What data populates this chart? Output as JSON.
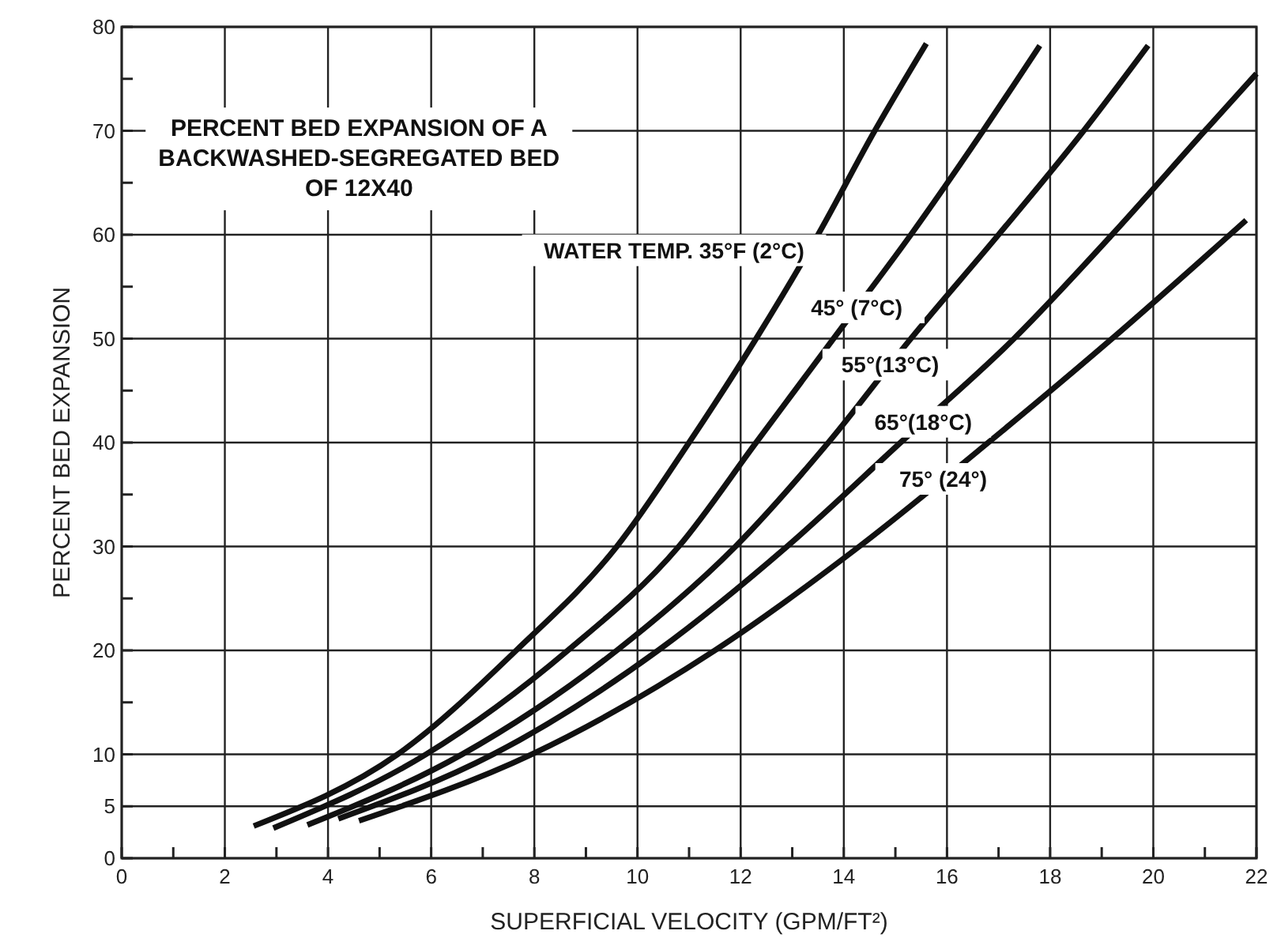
{
  "chart_data": {
    "type": "line",
    "title": "PERCENT BED EXPANSION OF A\nBACKWASHED-SEGREGATED BED\nOF 12X40",
    "xlabel": "SUPERFICIAL VELOCITY (GPM/FT²)",
    "ylabel": "PERCENT BED EXPANSION",
    "xlim": [
      0,
      22
    ],
    "ylim": [
      0,
      80
    ],
    "xticks": [
      0,
      {
        "value": 1,
        "label": null
      },
      2,
      {
        "value": 3,
        "label": null
      },
      4,
      {
        "value": 5,
        "label": null
      },
      6,
      {
        "value": 7,
        "label": null
      },
      8,
      {
        "value": 9,
        "label": null
      },
      10,
      {
        "value": 11,
        "label": null
      },
      12,
      {
        "value": 13,
        "label": null
      },
      14,
      {
        "value": 15,
        "label": null
      },
      16,
      {
        "value": 17,
        "label": null
      },
      18,
      {
        "value": 19,
        "label": null
      },
      20,
      {
        "value": 21,
        "label": null
      },
      22
    ],
    "yticks": [
      0,
      5,
      10,
      {
        "value": 15,
        "label": null
      },
      20,
      {
        "value": 25,
        "label": null
      },
      30,
      {
        "value": 35,
        "label": null
      },
      40,
      {
        "value": 45,
        "label": null
      },
      50,
      {
        "value": 55,
        "label": null
      },
      60,
      {
        "value": 65,
        "label": null
      },
      70,
      {
        "value": 75,
        "label": null
      },
      80
    ],
    "grid": true,
    "marker": "none",
    "line_style": "solid",
    "series": [
      {
        "name": "WATER TEMP. 35°F (2°C)",
        "color": "#111111",
        "x": [
          2.56,
          5.35,
          7.65,
          9.6,
          11.0,
          12.3,
          13.5,
          14.6,
          15.6
        ],
        "values": [
          3.1,
          10,
          20,
          30,
          40,
          50,
          60,
          70,
          78.4
        ]
      },
      {
        "name": "45° (7°C)",
        "color": "#111111",
        "x": [
          2.94,
          5.9,
          8.65,
          10.8,
          12.3,
          13.8,
          15.3,
          16.7,
          17.8
        ],
        "values": [
          2.9,
          10,
          20,
          30,
          40,
          50,
          60,
          70,
          78.2
        ]
      },
      {
        "name": "55°(13°C)",
        "color": "#111111",
        "x": [
          3.6,
          6.6,
          9.6,
          11.9,
          13.7,
          15.3,
          17,
          18.65,
          19.9
        ],
        "values": [
          3.2,
          10,
          20,
          30,
          40,
          50,
          60,
          70,
          78.2
        ]
      },
      {
        "name": "65°(18°C)",
        "color": "#111111",
        "x": [
          4.2,
          7.2,
          10.4,
          12.9,
          15.1,
          17.3,
          19.2,
          21.0,
          22
        ],
        "values": [
          3.8,
          10,
          20,
          30,
          40,
          50,
          60,
          70,
          75.5
        ]
      },
      {
        "name": "75° (24°)",
        "color": "#111111",
        "x": [
          4.6,
          7.95,
          11.5,
          14.3,
          16.8,
          19.2,
          21.8
        ],
        "values": [
          3.6,
          10,
          20,
          30,
          40,
          50,
          61.4
        ]
      }
    ]
  }
}
